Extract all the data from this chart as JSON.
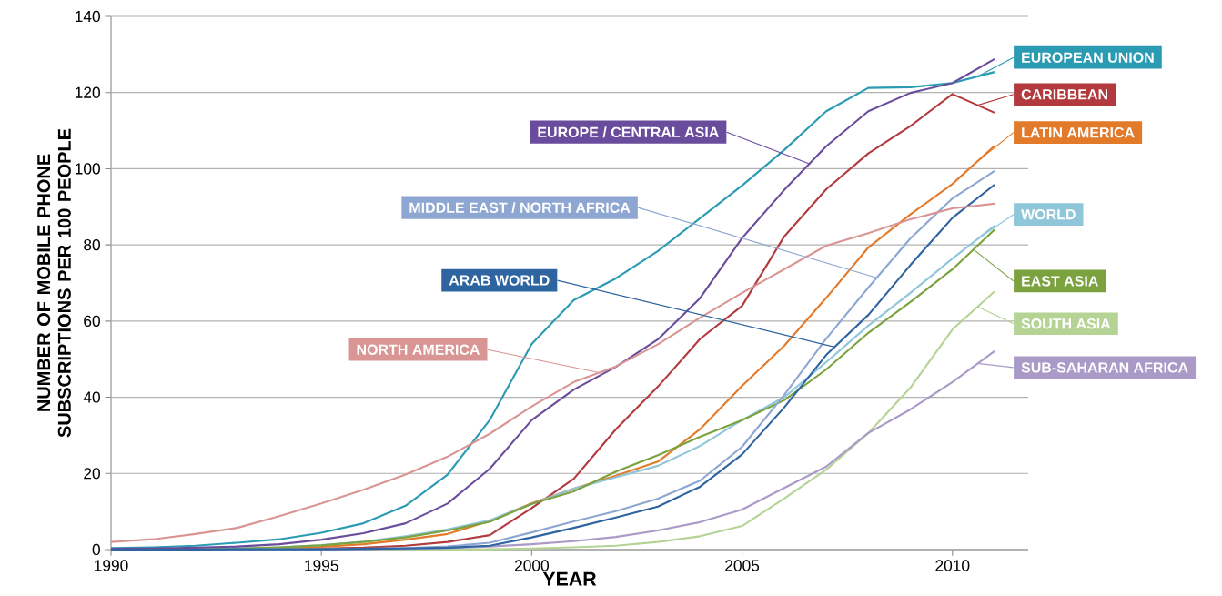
{
  "chart_data": {
    "type": "line",
    "xlabel": "YEAR",
    "ylabel": "NUMBER OF MOBILE PHONE SUBSCRIPTIONS PER 100 PEOPLE",
    "x": [
      1990,
      1991,
      1992,
      1993,
      1994,
      1995,
      1996,
      1997,
      1998,
      1999,
      2000,
      2001,
      2002,
      2003,
      2004,
      2005,
      2006,
      2007,
      2008,
      2009,
      2010,
      2011
    ],
    "xlim": [
      1990,
      2011.8
    ],
    "ylim": [
      0,
      140
    ],
    "xticks": [
      1990,
      1995,
      2000,
      2005,
      2010
    ],
    "yticks": [
      0,
      20,
      40,
      60,
      80,
      100,
      120,
      140
    ],
    "grid": "y",
    "legend": "right",
    "series": [
      {
        "name": "EUROPEAN UNION",
        "color": "#2a9bb2",
        "values": [
          0.4,
          0.6,
          1.0,
          1.8,
          2.7,
          4.4,
          6.9,
          11.5,
          19.7,
          34,
          54,
          65.5,
          71.2,
          78.4,
          87,
          95.6,
          104.9,
          115.1,
          121.2,
          121.4,
          122.5,
          125.4
        ]
      },
      {
        "name": "CARIBBEAN",
        "color": "#b23a3e",
        "values": [
          null,
          null,
          null,
          null,
          0.2,
          0.3,
          0.5,
          1,
          2,
          3.8,
          10.9,
          18.6,
          31.6,
          42.8,
          55.3,
          64,
          82.2,
          94.6,
          104,
          111.2,
          119.6,
          114.7
        ]
      },
      {
        "name": "LATIN AMERICA",
        "color": "#e27a2a",
        "values": [
          null,
          null,
          null,
          null,
          0.3,
          0.7,
          1.4,
          2.6,
          4.1,
          7.5,
          12.2,
          16,
          19.4,
          23.1,
          31.6,
          43,
          53.5,
          66.1,
          79.3,
          88,
          96,
          106
        ]
      },
      {
        "name": "WORLD",
        "color": "#8fc6da",
        "values": [
          0.1,
          0.1,
          0.2,
          0.3,
          0.6,
          1.2,
          2.1,
          3.5,
          5.3,
          7.7,
          12,
          16,
          19,
          22,
          27.2,
          34,
          40,
          49.2,
          58.8,
          67.4,
          76.4,
          85
        ]
      },
      {
        "name": "EAST ASIA",
        "color": "#7ba23f",
        "values": [
          0.1,
          0.1,
          0.2,
          0.3,
          0.6,
          1.1,
          2,
          3.2,
          5,
          7.3,
          12,
          15.3,
          20.5,
          24.8,
          29.6,
          34,
          39.2,
          47.3,
          56.9,
          65,
          73.6,
          84
        ]
      },
      {
        "name": "SOUTH ASIA",
        "color": "#b6d396",
        "values": [
          0,
          0,
          0,
          0,
          0,
          0,
          0,
          0,
          0,
          0.1,
          0.3,
          0.6,
          1,
          2,
          3.5,
          6.2,
          13.4,
          21,
          30.6,
          42.5,
          57.8,
          67.8
        ]
      },
      {
        "name": "SUB-SAHARAN AFRICA",
        "color": "#a99ac8",
        "values": [
          0,
          0,
          0,
          0,
          0,
          0,
          0.1,
          0.2,
          0.4,
          0.8,
          1.4,
          2.2,
          3.3,
          5,
          7.2,
          10.5,
          16.2,
          21.8,
          30.6,
          36.8,
          44,
          52.1
        ]
      },
      {
        "name": "EUROPE / CENTRAL ASIA",
        "color": "#6a4c9c",
        "values": [
          0.2,
          0.3,
          0.5,
          0.8,
          1.4,
          2.6,
          4.3,
          6.9,
          12.1,
          21.2,
          34,
          42,
          48,
          55.2,
          66,
          81.8,
          94.4,
          105.9,
          115.1,
          119.9,
          122.5,
          128.8
        ]
      },
      {
        "name": "MIDDLE EAST / NORTH AFRICA",
        "color": "#8ea7d2",
        "values": [
          0,
          0,
          0,
          0.1,
          0.1,
          0.1,
          0.2,
          0.4,
          0.8,
          1.8,
          4.5,
          7.4,
          10.1,
          13.4,
          18.1,
          27,
          40.6,
          55.4,
          68.8,
          81.7,
          92.2,
          99.4
        ]
      },
      {
        "name": "ARAB WORLD",
        "color": "#2e64a0",
        "values": [
          0,
          0,
          0,
          0.1,
          0.1,
          0.1,
          0.2,
          0.3,
          0.5,
          1,
          3.2,
          5.7,
          8.4,
          11.3,
          16.5,
          25,
          37.3,
          51.1,
          61.6,
          74.7,
          87.1,
          95.8
        ]
      },
      {
        "name": "NORTH AMERICA",
        "color": "#d99594",
        "values": [
          2,
          2.7,
          4.1,
          5.7,
          8.8,
          12.1,
          15.7,
          19.7,
          24.4,
          30.4,
          37.6,
          44,
          48.1,
          53.9,
          60.9,
          67.4,
          73.6,
          79.8,
          83.1,
          86.7,
          89.6,
          90.8
        ]
      }
    ]
  }
}
